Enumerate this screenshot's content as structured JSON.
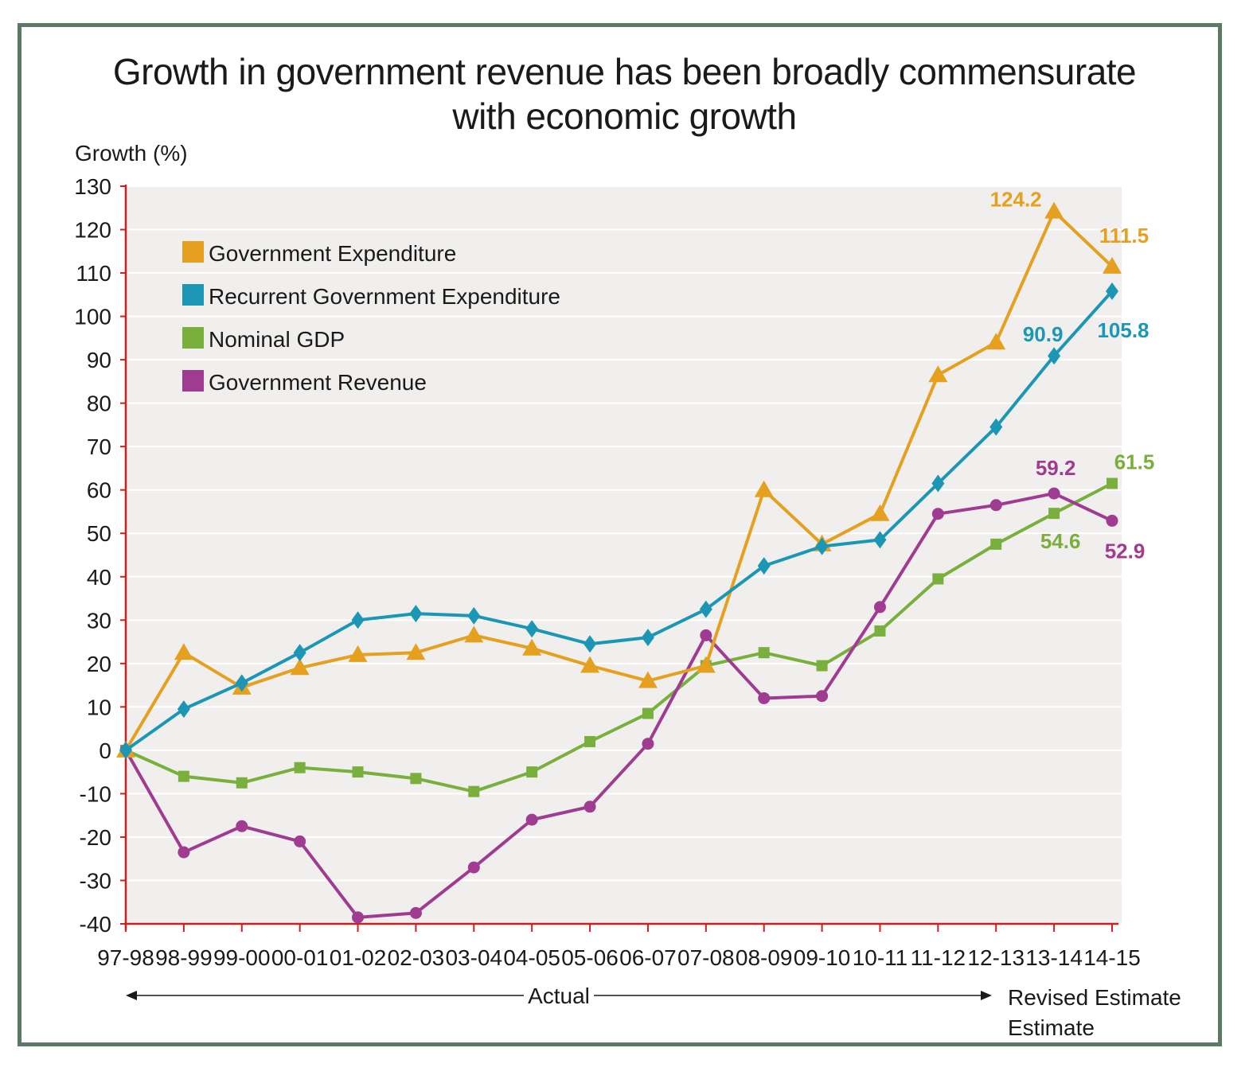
{
  "title_line1": "Growth in government revenue has been broadly commensurate",
  "title_line2": "with economic growth",
  "actual_label": "Actual",
  "revised_label": "Revised Estimate",
  "estimate_label": "Estimate",
  "colors": {
    "frame": "#5b7a66",
    "axis": "#cc1f1f",
    "plot_bg": "#f0efed",
    "grid": "#ffffff",
    "expenditure": "#e5a020",
    "recurrent": "#1b97b5",
    "gdp": "#79af3c",
    "revenue": "#a03b92"
  },
  "chart_data": {
    "type": "line",
    "title": "Growth in government revenue has been broadly commensurate with economic growth",
    "ylabel": "Growth (%)",
    "xlabel": "",
    "ylim": [
      -40,
      130
    ],
    "yticks": [
      130,
      120,
      110,
      100,
      90,
      80,
      70,
      60,
      50,
      40,
      30,
      20,
      10,
      0,
      -10,
      -20,
      -30,
      -40
    ],
    "categories": [
      "97-98",
      "98-99",
      "99-00",
      "00-01",
      "01-02",
      "02-03",
      "03-04",
      "04-05",
      "05-06",
      "06-07",
      "07-08",
      "08-09",
      "09-10",
      "10-11",
      "11-12",
      "12-13",
      "13-14",
      "14-15"
    ],
    "grid": true,
    "legend_position": "top-left",
    "series": [
      {
        "name": "Government Expenditure",
        "color": "#e5a020",
        "marker": "triangle",
        "values": [
          0,
          22.5,
          14.5,
          19,
          22,
          22.5,
          26.5,
          23.5,
          19.5,
          16,
          19.5,
          60,
          47.5,
          54.5,
          86.5,
          94,
          124.2,
          111.5
        ]
      },
      {
        "name": "Recurrent Government Expenditure",
        "color": "#1b97b5",
        "marker": "diamond",
        "values": [
          0,
          9.5,
          15.5,
          22.5,
          30,
          31.5,
          31,
          28,
          24.5,
          26,
          32.5,
          42.5,
          47,
          48.5,
          61.5,
          74.5,
          90.9,
          105.8
        ]
      },
      {
        "name": "Nominal GDP",
        "color": "#79af3c",
        "marker": "square",
        "values": [
          0,
          -6,
          -7.5,
          -4,
          -5,
          -6.5,
          -9.5,
          -5,
          2,
          8.5,
          19.5,
          22.5,
          19.5,
          27.5,
          39.5,
          47.5,
          54.6,
          61.5
        ]
      },
      {
        "name": "Government Revenue",
        "color": "#a03b92",
        "marker": "circle",
        "values": [
          0,
          -23.5,
          -17.5,
          -21,
          -38.5,
          -37.5,
          -27,
          -16,
          -13,
          1.5,
          26.5,
          12,
          12.5,
          33,
          54.5,
          56.5,
          59.2,
          52.9
        ]
      }
    ],
    "annotations": [
      {
        "text": "124.2",
        "series": 0,
        "index": 16
      },
      {
        "text": "111.5",
        "series": 0,
        "index": 17
      },
      {
        "text": "90.9",
        "series": 1,
        "index": 16
      },
      {
        "text": "105.8",
        "series": 1,
        "index": 17
      },
      {
        "text": "59.2",
        "series": 3,
        "index": 16
      },
      {
        "text": "61.5",
        "series": 2,
        "index": 17
      },
      {
        "text": "54.6",
        "series": 2,
        "index": 16
      },
      {
        "text": "52.9",
        "series": 3,
        "index": 17
      }
    ]
  }
}
